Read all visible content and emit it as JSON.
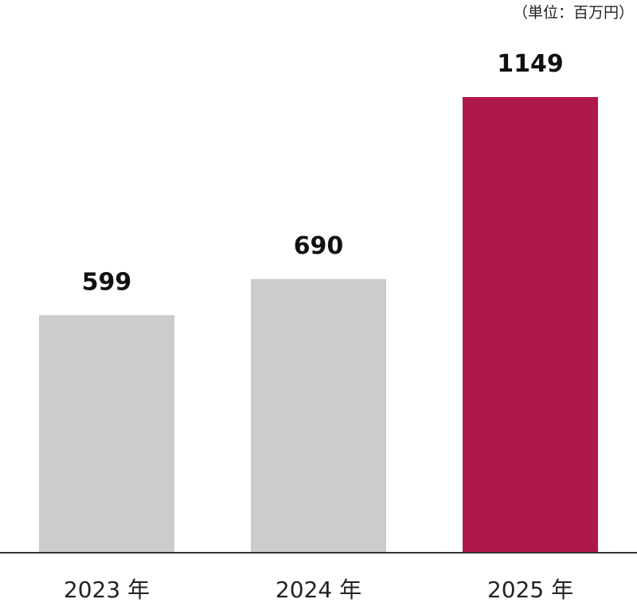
{
  "chart_data": {
    "type": "bar",
    "unit_label": "（単位：百万円）",
    "categories": [
      "2023 年",
      "2024 年",
      "2025 年"
    ],
    "values": [
      599,
      690,
      1149
    ],
    "value_labels": [
      "599",
      "690",
      "1149"
    ],
    "bar_colors": [
      "#cccccc",
      "#cccccc",
      "#b0184b"
    ],
    "axis_color": "#333333",
    "ylim": [
      0,
      1149
    ],
    "grid": false,
    "legend": "none"
  }
}
